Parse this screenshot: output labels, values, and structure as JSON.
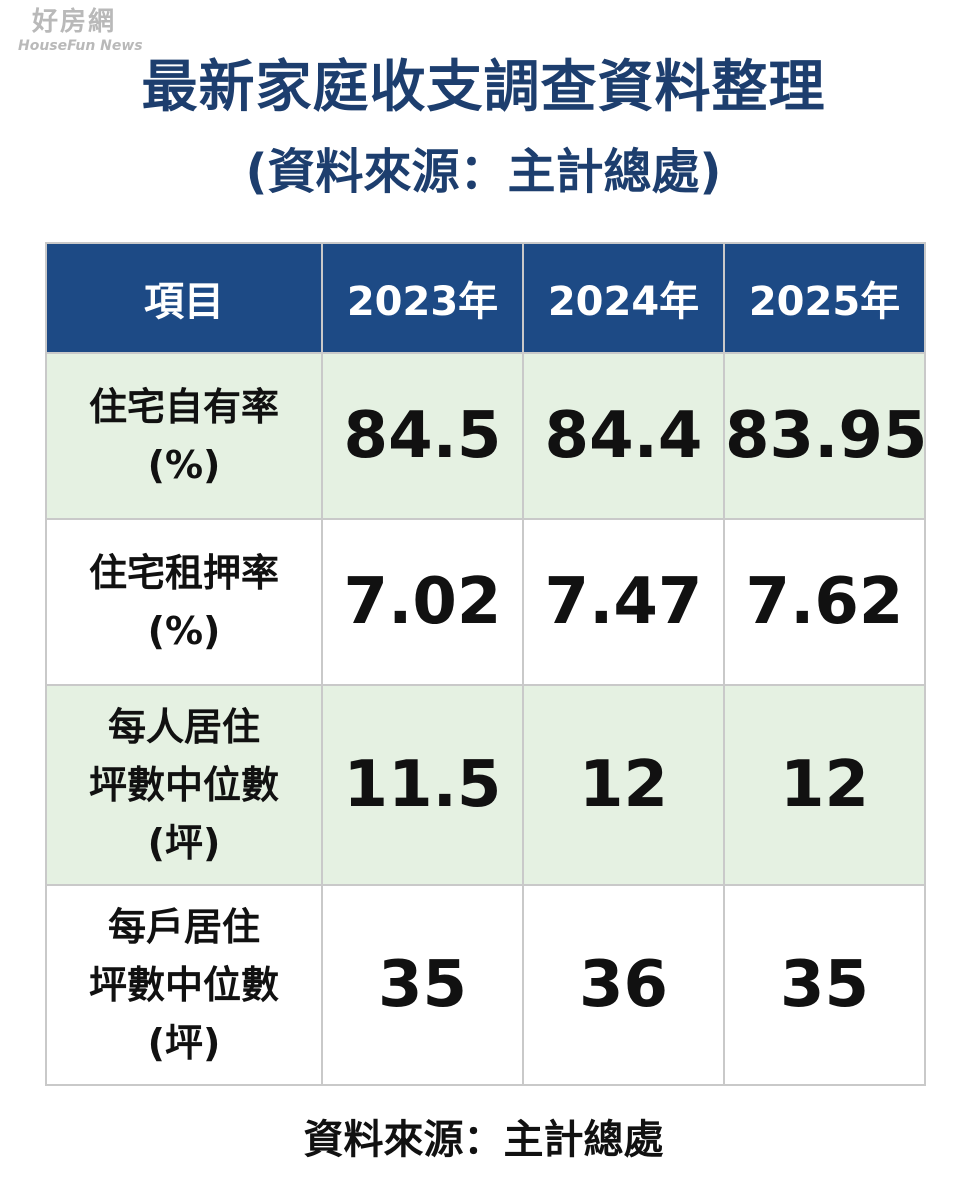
{
  "watermark": {
    "brand": "好房網",
    "sub": "HouseFun News"
  },
  "title": {
    "main": "最新家庭收支調查資料整理",
    "sub_open": "(",
    "sub_text": "資料來源：主計總處",
    "sub_close": ")"
  },
  "table": {
    "headers": [
      "項目",
      "2023年",
      "2024年",
      "2025年"
    ],
    "rows": [
      {
        "label_lines": [
          "住宅自有率",
          "(%)"
        ],
        "values": [
          "84.5",
          "84.4",
          "83.95"
        ]
      },
      {
        "label_lines": [
          "住宅租押率",
          "(%)"
        ],
        "values": [
          "7.02",
          "7.47",
          "7.62"
        ]
      },
      {
        "label_lines": [
          "每人居住",
          "坪數中位數",
          "(坪)"
        ],
        "values": [
          "11.5",
          "12",
          "12"
        ]
      },
      {
        "label_lines": [
          "每戶居住",
          "坪數中位數",
          "(坪)"
        ],
        "values": [
          "35",
          "36",
          "35"
        ]
      }
    ]
  },
  "footer": {
    "source": "資料來源：主計總處"
  },
  "colors": {
    "title": "#1d3e6e",
    "header_bg": "#1d4a85",
    "shaded_row": "#e5f1e2",
    "border": "#c9c9c9"
  }
}
